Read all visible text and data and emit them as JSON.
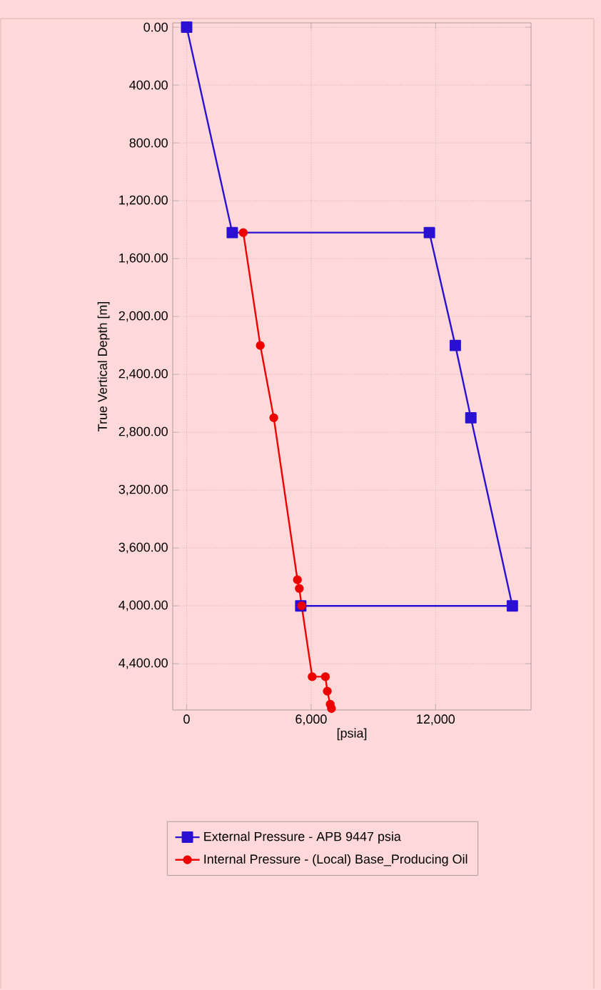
{
  "chart_data": {
    "type": "line",
    "xlabel": "[psia]",
    "ylabel": "True Vertical Depth [m]",
    "xlim": [
      -670,
      16600
    ],
    "ylim": [
      4720,
      -30
    ],
    "xticks": [
      0,
      {
        "value": 6000,
        "label": "6,000"
      },
      {
        "value": 12000,
        "label": "12,000"
      }
    ],
    "yticks": [
      {
        "value": 0,
        "label": "0.00"
      },
      {
        "value": 400,
        "label": "400.00"
      },
      {
        "value": 800,
        "label": "800.00"
      },
      {
        "value": 1200,
        "label": "1,200.00"
      },
      {
        "value": 1600,
        "label": "1,600.00"
      },
      {
        "value": 2000,
        "label": "2,000.00"
      },
      {
        "value": 2400,
        "label": "2,400.00"
      },
      {
        "value": 2800,
        "label": "2,800.00"
      },
      {
        "value": 3200,
        "label": "3,200.00"
      },
      {
        "value": 3600,
        "label": "3,600.00"
      },
      {
        "value": 4000,
        "label": "4,000.00"
      },
      {
        "value": 4400,
        "label": "4,400.00"
      }
    ],
    "grid": true,
    "legend": "bottom",
    "series": [
      {
        "name": "External Pressure - APB 9447 psia",
        "color": "#2a10d0",
        "marker": "square",
        "x": [
          0,
          2200,
          11700,
          12950,
          13700,
          15700,
          5500
        ],
        "values": [
          0,
          1420,
          1420,
          2200,
          2700,
          4000,
          4000
        ]
      },
      {
        "name": "Internal Pressure - (Local) Base_Producing Oil",
        "color": "#ee0000",
        "marker": "circle",
        "x": [
          2730,
          3550,
          4200,
          5340,
          5430,
          5545,
          6050,
          6690,
          6780,
          6920,
          6980
        ],
        "values": [
          1420,
          2200,
          2700,
          3820,
          3880,
          4000,
          4490,
          4490,
          4590,
          4680,
          4710
        ]
      }
    ]
  }
}
